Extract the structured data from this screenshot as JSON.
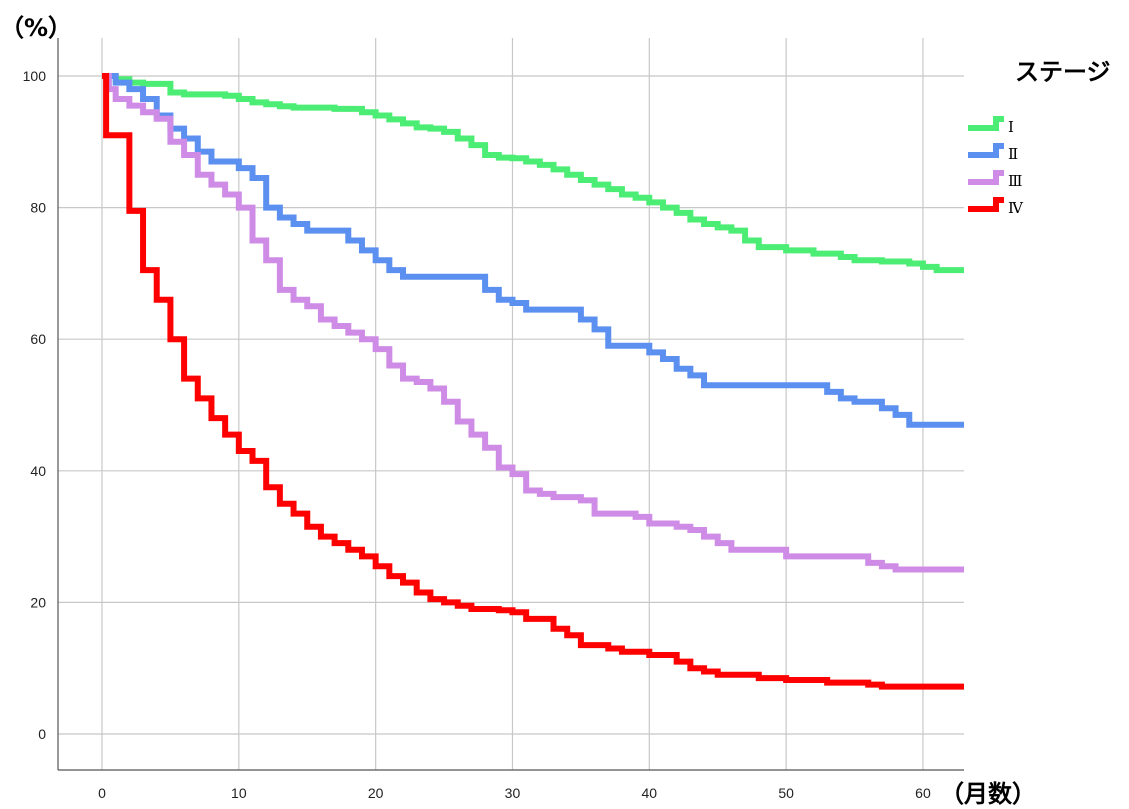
{
  "chart_data": {
    "type": "line",
    "step": true,
    "y_unit_label": "（%）",
    "x_unit_label": "（月数）",
    "xlim": [
      0,
      63
    ],
    "ylim": [
      -5,
      105
    ],
    "x_ticks": [
      0,
      10,
      20,
      30,
      40,
      50,
      60
    ],
    "y_ticks": [
      0,
      20,
      40,
      60,
      80,
      100
    ],
    "grid": true,
    "legend": {
      "title": "ステージ",
      "position": "right"
    },
    "series": [
      {
        "name": "Ⅰ",
        "color": "#4ced74",
        "x": [
          0,
          1,
          2,
          3,
          5,
          6,
          8,
          9,
          10,
          11,
          12,
          13,
          14,
          17,
          19,
          20,
          21,
          22,
          23,
          24,
          25,
          26,
          27,
          28,
          29,
          30,
          31,
          32,
          33,
          34,
          35,
          36,
          37,
          38,
          39,
          40,
          41,
          42,
          43,
          44,
          45,
          46,
          47,
          48,
          50,
          52,
          54,
          55,
          57,
          59,
          60,
          61,
          63
        ],
        "y": [
          100,
          99.5,
          99,
          98.8,
          97.5,
          97.2,
          97.2,
          97,
          96.5,
          96,
          95.7,
          95.4,
          95.2,
          95,
          94.5,
          94,
          93.4,
          92.8,
          92.2,
          92,
          91.5,
          90.5,
          89.5,
          88,
          87.6,
          87.5,
          87,
          86.5,
          85.8,
          85,
          84.2,
          83.5,
          82.8,
          82,
          81.5,
          80.8,
          80,
          79.2,
          78.2,
          77.5,
          77,
          76.5,
          75,
          74,
          73.5,
          73,
          72.5,
          72,
          71.8,
          71.5,
          71,
          70.5,
          70.5
        ]
      },
      {
        "name": "Ⅱ",
        "color": "#5b8ff0",
        "x": [
          0,
          1,
          2,
          3,
          4,
          5,
          6,
          7,
          8,
          10,
          11,
          12,
          13,
          14,
          15,
          18,
          19,
          20,
          21,
          22,
          24,
          28,
          29,
          30,
          31,
          35,
          36,
          37,
          40,
          41,
          42,
          43,
          44,
          52,
          53,
          54,
          55,
          57,
          58,
          59,
          60,
          63
        ],
        "y": [
          100,
          99,
          98,
          96.5,
          94,
          92,
          90.5,
          88.5,
          87,
          86,
          84.5,
          80,
          78.5,
          77.5,
          76.5,
          75,
          73.5,
          72,
          70.5,
          69.5,
          69.5,
          67.5,
          66,
          65.5,
          64.5,
          63,
          61.5,
          59,
          58,
          57,
          55.5,
          54.5,
          53,
          53,
          52,
          51,
          50.5,
          49.5,
          48.5,
          47,
          47,
          47
        ]
      },
      {
        "name": "Ⅲ",
        "color": "#cf8ce6",
        "x": [
          0,
          0.5,
          1,
          2,
          3,
          4,
          5,
          6,
          7,
          8,
          9,
          10,
          11,
          12,
          13,
          14,
          15,
          16,
          17,
          18,
          19,
          20,
          21,
          22,
          23,
          24,
          25,
          26,
          27,
          28,
          29,
          30,
          31,
          32,
          33,
          35,
          36,
          39,
          40,
          42,
          43,
          44,
          45,
          46,
          50,
          56,
          57,
          58,
          63
        ],
        "y": [
          100,
          98,
          96.5,
          95.5,
          94.5,
          93.5,
          90,
          88,
          85,
          83.5,
          82,
          80,
          75,
          72,
          67.5,
          66,
          65,
          63,
          62,
          61,
          60,
          58.5,
          56,
          54,
          53.5,
          52.5,
          50.5,
          47.5,
          45.5,
          43.5,
          40.5,
          39.5,
          37,
          36.5,
          36,
          35.5,
          33.5,
          33,
          32,
          31.5,
          31,
          30,
          29,
          28,
          27,
          26,
          25.5,
          25,
          25
        ]
      },
      {
        "name": "Ⅳ",
        "color": "#ff0000",
        "x": [
          0,
          0.3,
          1,
          2,
          3,
          4,
          5,
          6,
          7,
          8,
          9,
          10,
          11,
          12,
          13,
          14,
          15,
          16,
          17,
          18,
          19,
          20,
          21,
          22,
          23,
          24,
          25,
          26,
          27,
          28,
          29,
          30,
          31,
          33,
          34,
          35,
          37,
          38,
          40,
          42,
          43,
          44,
          45,
          47,
          48,
          50,
          53,
          56,
          57,
          63
        ],
        "y": [
          100,
          91,
          91,
          79.5,
          70.5,
          66,
          60,
          54,
          51,
          48,
          45.5,
          43,
          41.5,
          37.5,
          35,
          33.5,
          31.5,
          30,
          29,
          28,
          27,
          25.5,
          24,
          23,
          21.5,
          20.5,
          20,
          19.5,
          19,
          19,
          18.8,
          18.5,
          17.5,
          16,
          15,
          13.5,
          13,
          12.5,
          12,
          11,
          10,
          9.5,
          9,
          9,
          8.5,
          8.2,
          7.8,
          7.5,
          7.2,
          7.2
        ]
      }
    ]
  }
}
